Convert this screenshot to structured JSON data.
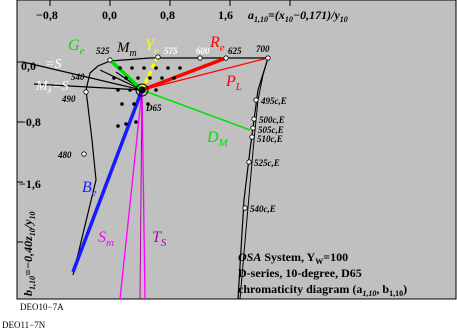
{
  "ticks": {
    "x": [
      "−0,8",
      "0,0",
      "0,8",
      "1,6"
    ],
    "y": [
      "0,0",
      "−0,8",
      "−1,6"
    ]
  },
  "axis_titles": {
    "a_top": "a",
    "a_top_sub": "1,10",
    "a_top_formula": "=(x",
    "a_top_formula_sub": "10",
    "a_top_formula_rest": "−0,171)/y",
    "a_top_formula_sub2": "10",
    "b_left": "b",
    "b_left_sub": "1,10",
    "b_left_formula": "=−0,40z",
    "b_left_formula_sub": "10",
    "b_left_formula_rest": "/y",
    "b_left_formula_sub2": "10"
  },
  "wavelength_labels": [
    "525",
    "575",
    "600",
    "625",
    "700",
    "540",
    "490",
    "480"
  ],
  "daylight_labels": [
    "495c,E",
    "500c,E",
    "505c,E",
    "510c,E",
    "525c,E",
    "540c,E"
  ],
  "point_labels": {
    "Ge": "G",
    "Ge_sub": "e",
    "Mm": "M",
    "Mm_sub": "m",
    "Ye": "Y",
    "Ye_sub": "e",
    "Re": "R",
    "Re_sub": "e",
    "PL": "P",
    "PL_sub": "L",
    "DM": "D",
    "DM_sub": "M",
    "Be": "B",
    "Be_sub": "e",
    "Sm": "S",
    "Sm_sub": "m",
    "TS": "T",
    "TS_sub": "S",
    "Mlambda_S_top": "=S",
    "Mlambda_S_bot": "M",
    "Mlambda_sub": "λ",
    "Mlambda_S_bot_rest": "=S",
    "D65": "D65"
  },
  "caption": {
    "line1_pre": "OSA",
    "line1_rest": " System, Y",
    "line1_sub": "W",
    "line1_end": "=100",
    "line2": "D-series, 10-degree, D65",
    "line3_pre": "chromaticity diagram (a",
    "line3_sub1": "1,10",
    "line3_mid": ", b",
    "line3_sub2": "1,10",
    "line3_end": ")"
  },
  "footer": {
    "inner": "DEO10−7A",
    "outer": "DEO11−7N"
  },
  "colors": {
    "background": "#c0c0c0",
    "green": "#00c000",
    "yellow": "#ffff00",
    "red": "#ff0000",
    "blue": "#1a1aff",
    "magenta": "#ff00ff",
    "purple": "#b000b0"
  }
}
